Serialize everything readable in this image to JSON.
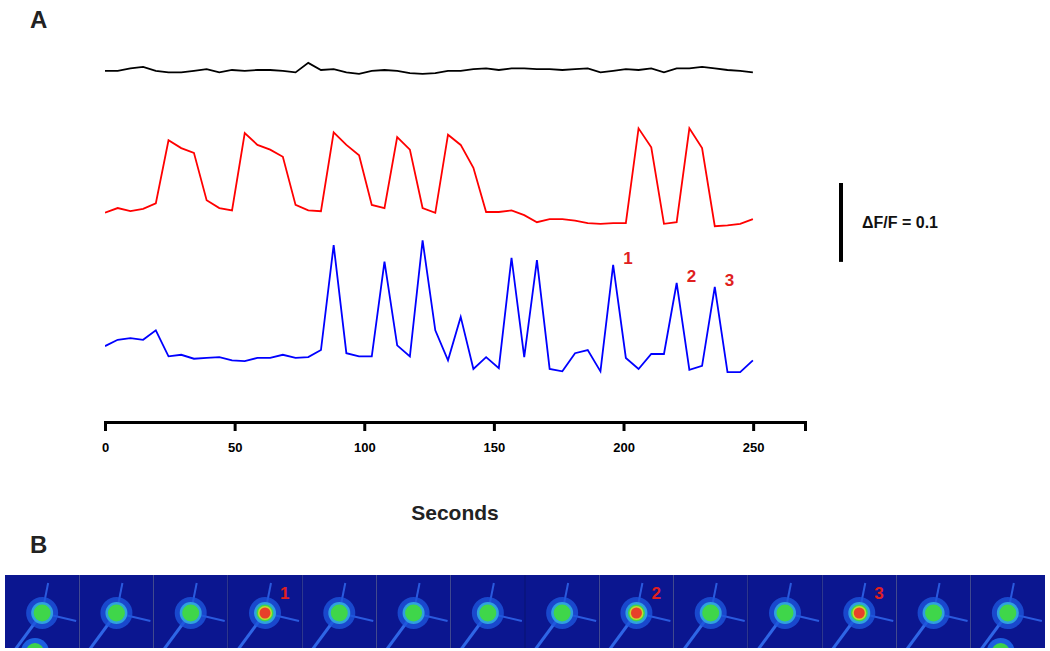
{
  "chart_data": {
    "type": "line",
    "title": "A",
    "xlabel": "Seconds",
    "x": [
      0,
      4.9,
      9.8,
      14.7,
      19.6,
      24.5,
      29.4,
      34.3,
      39.2,
      44.1,
      49,
      53.9,
      58.8,
      63.7,
      68.6,
      73.5,
      78.4,
      83.3,
      88.2,
      93.1,
      98,
      102.9,
      107.8,
      112.7,
      117.6,
      122.5,
      127.4,
      132.3,
      137.2,
      142.1,
      147,
      151.9,
      156.8,
      161.7,
      166.6,
      171.5,
      176.4,
      181.3,
      186.2,
      191.1,
      196,
      200.9,
      205.8,
      210.7,
      215.6,
      220.5,
      225.4,
      230.3,
      235.2,
      240.1,
      245,
      249.9
    ],
    "series": [
      {
        "color": "#000000",
        "values": [
          0.43,
          0.43,
          0.433,
          0.435,
          0.43,
          0.428,
          0.428,
          0.43,
          0.432,
          0.428,
          0.431,
          0.43,
          0.431,
          0.431,
          0.43,
          0.428,
          0.44,
          0.431,
          0.432,
          0.428,
          0.426,
          0.43,
          0.431,
          0.43,
          0.427,
          0.426,
          0.427,
          0.43,
          0.43,
          0.432,
          0.433,
          0.431,
          0.433,
          0.433,
          0.432,
          0.432,
          0.431,
          0.432,
          0.433,
          0.428,
          0.43,
          0.432,
          0.431,
          0.433,
          0.428,
          0.433,
          0.433,
          0.435,
          0.433,
          0.431,
          0.43,
          0.428
        ]
      },
      {
        "color": "#ff0000",
        "values": [
          0.25,
          0.256,
          0.252,
          0.255,
          0.262,
          0.342,
          0.332,
          0.326,
          0.266,
          0.256,
          0.253,
          0.351,
          0.336,
          0.33,
          0.321,
          0.26,
          0.253,
          0.252,
          0.352,
          0.336,
          0.323,
          0.26,
          0.256,
          0.346,
          0.33,
          0.256,
          0.25,
          0.349,
          0.336,
          0.307,
          0.251,
          0.251,
          0.253,
          0.247,
          0.238,
          0.242,
          0.242,
          0.24,
          0.237,
          0.236,
          0.237,
          0.237,
          0.357,
          0.333,
          0.236,
          0.238,
          0.357,
          0.332,
          0.233,
          0.234,
          0.236,
          0.242
        ]
      },
      {
        "color": "#0000ff",
        "values": [
          0.081,
          0.089,
          0.091,
          0.089,
          0.101,
          0.068,
          0.07,
          0.065,
          0.066,
          0.067,
          0.063,
          0.062,
          0.066,
          0.066,
          0.07,
          0.066,
          0.067,
          0.076,
          0.209,
          0.072,
          0.068,
          0.068,
          0.188,
          0.082,
          0.068,
          0.215,
          0.101,
          0.063,
          0.118,
          0.052,
          0.067,
          0.053,
          0.193,
          0.067,
          0.19,
          0.052,
          0.049,
          0.072,
          0.076,
          0.049,
          0.184,
          0.066,
          0.052,
          0.071,
          0.071,
          0.161,
          0.051,
          0.056,
          0.156,
          0.048,
          0.048,
          0.063
        ]
      }
    ],
    "xlim": [
      0,
      270
    ],
    "xticks": [
      0,
      50,
      100,
      150,
      200,
      250
    ],
    "ylim": [
      0,
      0.45
    ],
    "tick_labels": "x",
    "scale_bar": {
      "value": 0.1,
      "label": "ΔF/F = 0.1"
    },
    "annotations": [
      {
        "text": "1",
        "series": 2,
        "index": 40
      },
      {
        "text": "2",
        "series": 2,
        "index": 45
      },
      {
        "text": "3",
        "series": 2,
        "index": 48
      }
    ]
  },
  "panel_b": {
    "title": "B",
    "frame_labels": [
      null,
      null,
      null,
      "1",
      null,
      null,
      null,
      null,
      "2",
      null,
      null,
      "3",
      null,
      null
    ]
  }
}
